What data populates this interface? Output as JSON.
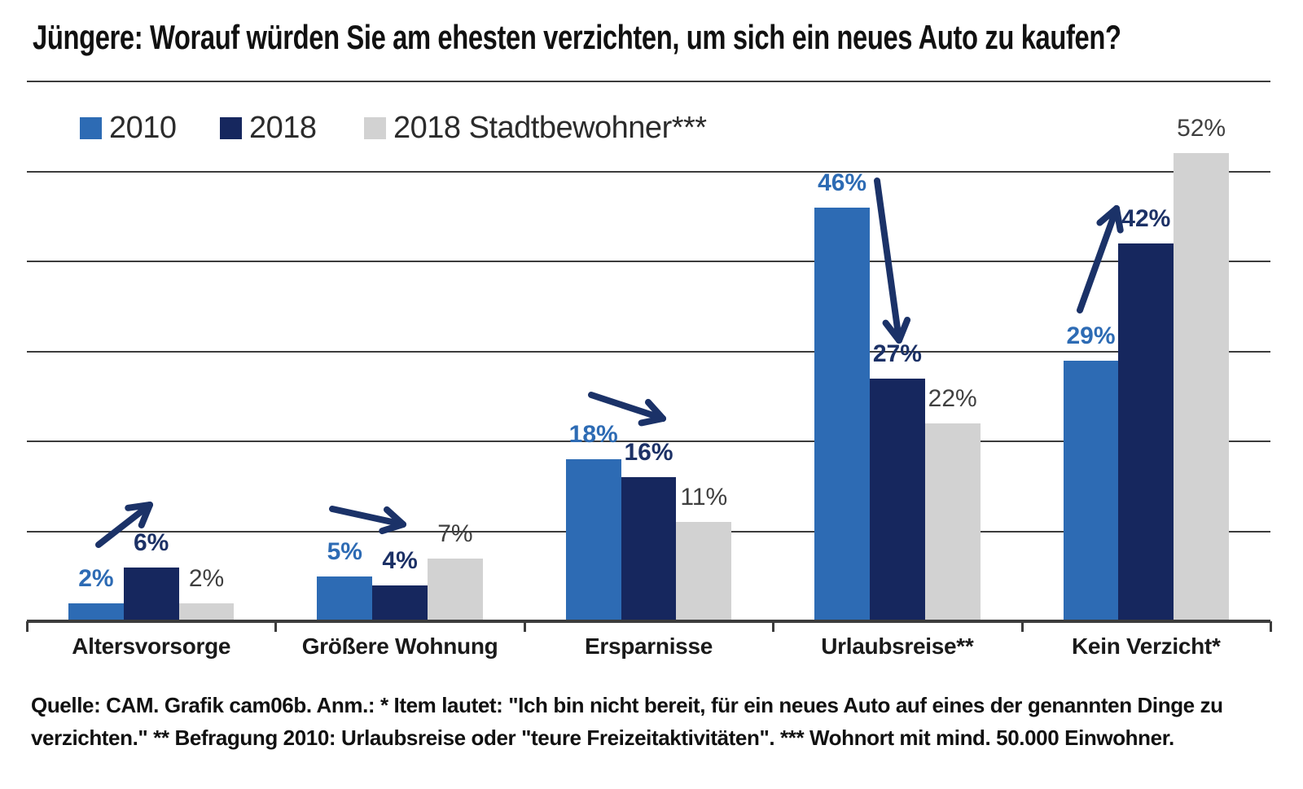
{
  "title": "Jüngere: Worauf würden Sie am ehesten verzichten, um sich ein neues Auto zu kaufen?",
  "legend": {
    "items": [
      "2010",
      "2018",
      "2018 Stadtbewohner***"
    ]
  },
  "chart_data": {
    "type": "bar",
    "categories": [
      "Altersvorsorge",
      "Größere Wohnung",
      "Ersparnisse",
      "Urlaubsreise**",
      "Kein Verzicht*"
    ],
    "series": [
      {
        "name": "2010",
        "color": "#2D6BB4",
        "label_color": "#2D6BB4",
        "label_bold": true,
        "values": [
          2,
          5,
          18,
          46,
          29
        ]
      },
      {
        "name": "2018",
        "color": "#16275E",
        "label_color": "#1C3166",
        "label_bold": true,
        "values": [
          6,
          4,
          16,
          27,
          42
        ]
      },
      {
        "name": "2018 Stadtbewohner***",
        "color": "#D2D2D2",
        "label_color": "#3F3F3F",
        "label_bold": false,
        "values": [
          2,
          7,
          11,
          22,
          52
        ]
      }
    ],
    "unit": "%",
    "ylim": [
      0,
      60
    ],
    "gridline_step": 10,
    "grid": true,
    "legend_position": "top-left",
    "annotations": {
      "arrow_color": "#1B3268",
      "arrows": [
        {
          "category": "Altersvorsorge",
          "from_series": "2010",
          "to_series": "2018",
          "trend": "up"
        },
        {
          "category": "Größere Wohnung",
          "from_series": "2010",
          "to_series": "2018",
          "trend": "flat"
        },
        {
          "category": "Ersparnisse",
          "from_series": "2010",
          "to_series": "2018",
          "trend": "slightly-down"
        },
        {
          "category": "Urlaubsreise**",
          "from_series": "2010",
          "to_series": "2018",
          "trend": "down"
        },
        {
          "category": "Kein Verzicht*",
          "from_series": "2010",
          "to_series": "2018",
          "trend": "up"
        }
      ]
    }
  },
  "footnote": {
    "line1": "Quelle: CAM.  Grafik cam06b. Anm.:  * Item lautet: \"Ich bin nicht bereit, für ein neues Auto auf eines der genannten Dinge zu",
    "line2": "verzichten.\"   ** Befragung 2010: Urlaubsreise oder \"teure Freizeitaktivitäten\".   *** Wohnort mit mind. 50.000 Einwohner."
  }
}
